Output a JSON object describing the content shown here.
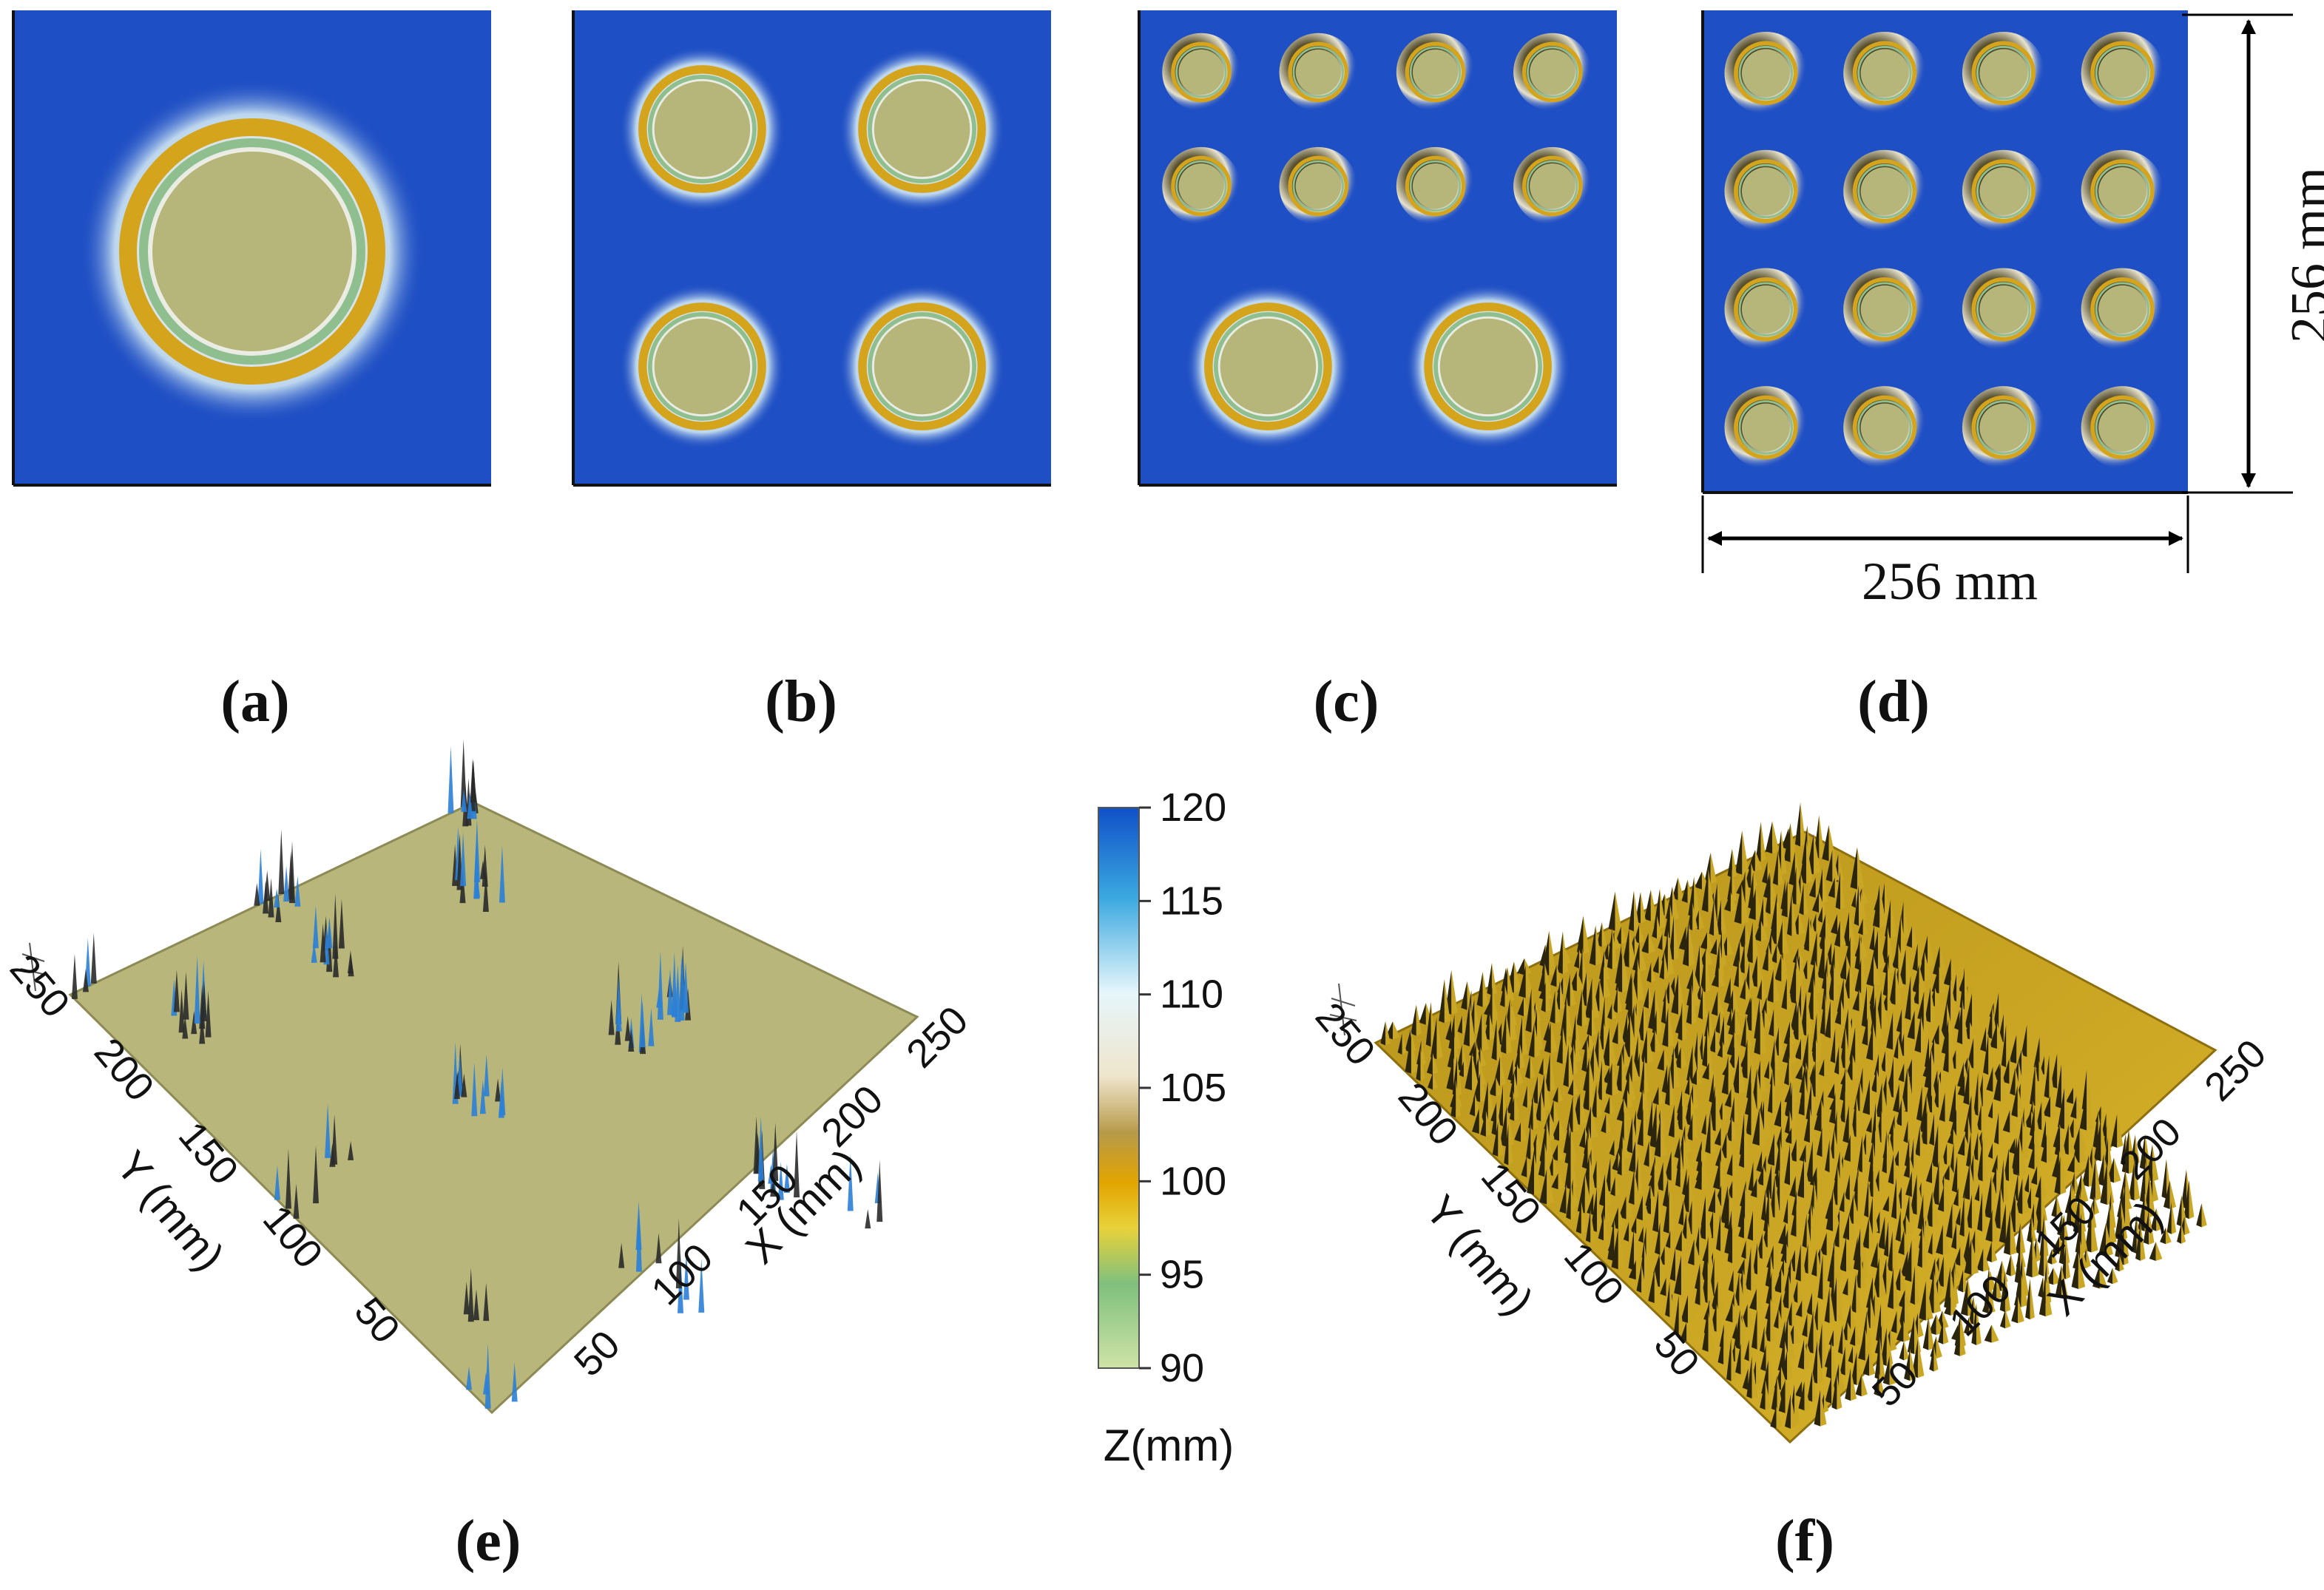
{
  "panels": {
    "a": {
      "label": "(a)",
      "grid": [
        [
          1
        ]
      ]
    },
    "b": {
      "label": "(b)",
      "grid": [
        [
          2,
          2
        ],
        [
          2,
          2
        ]
      ]
    },
    "c": {
      "label": "(c)",
      "grid": [
        [
          4,
          4,
          4,
          4
        ],
        [
          4,
          4,
          4,
          4
        ],
        [
          2,
          2
        ]
      ]
    },
    "d": {
      "label": "(d)",
      "grid": [
        [
          4,
          4,
          4,
          4
        ],
        [
          4,
          4,
          4,
          4
        ],
        [
          4,
          4,
          4,
          4
        ],
        [
          4,
          4,
          4,
          4
        ]
      ]
    },
    "e": {
      "label": "(e)"
    },
    "f": {
      "label": "(f)"
    }
  },
  "dimensions": {
    "width_label": "256 mm",
    "height_label": "256 mm"
  },
  "surface_axes": {
    "x_title": "X (mm)",
    "y_title": "Y (mm)",
    "x_ticks": [
      "50",
      "100",
      "150",
      "200",
      "250"
    ],
    "y_ticks": [
      "50",
      "100",
      "150",
      "200",
      "250"
    ]
  },
  "colorbar": {
    "title": "Z(mm)",
    "ticks": [
      "120",
      "115",
      "110",
      "105",
      "100",
      "95",
      "90"
    ],
    "min": 90,
    "max": 120
  },
  "colors": {
    "background_blue": "#1f4fc4",
    "plateau": "#b6b67a",
    "ring_gold": "#d3a41c",
    "ring_green": "#8fbf8f",
    "halo": "#f2f0df",
    "spike_gold": "#c9a624",
    "spike_blue": "#2b7fd6"
  }
}
